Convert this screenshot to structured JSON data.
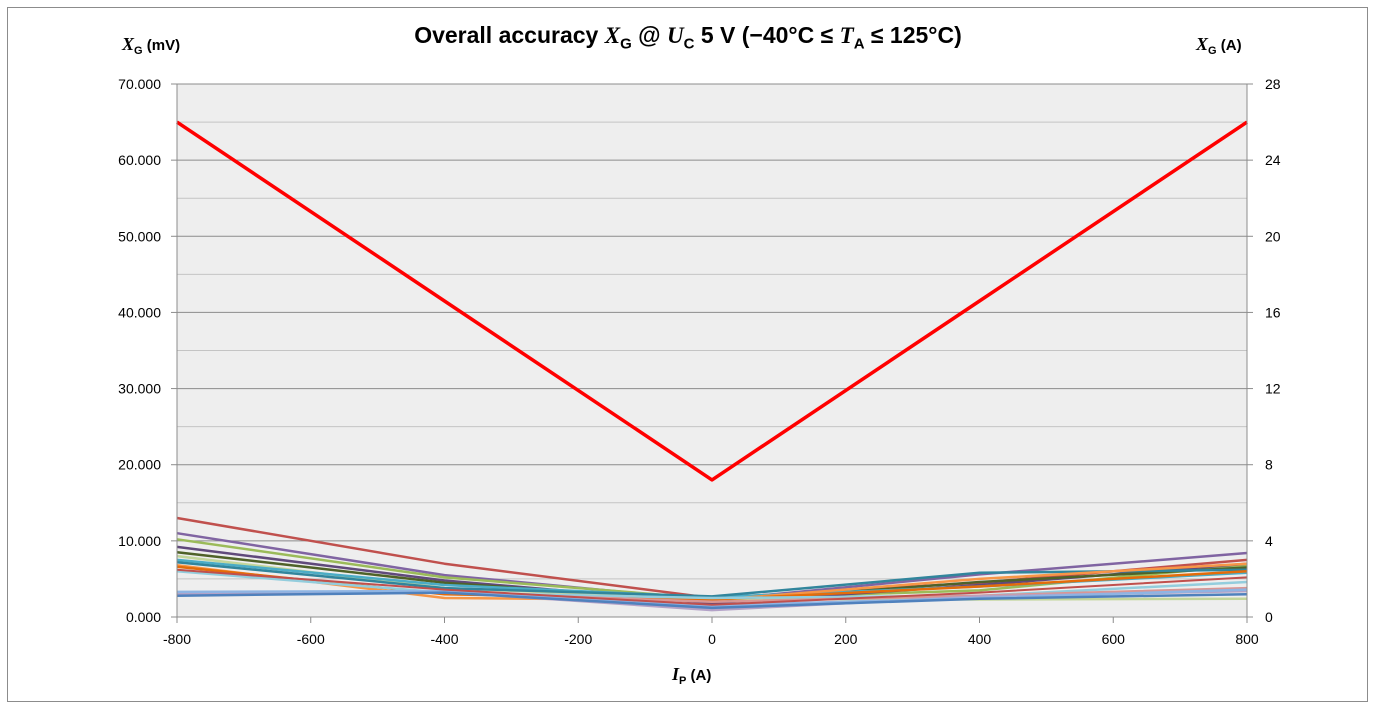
{
  "chart_data": {
    "type": "line",
    "title": {
      "prefix": "Overall accuracy ",
      "symbol1": "X",
      "sub1": "G",
      "mid1": " @ ",
      "symbol2": "U",
      "sub2": "C",
      "mid2": " 5 V (−40°C ≤ ",
      "symbol3": "T",
      "sub3": "A",
      "suffix": " ≤ 125°C)"
    },
    "ylabel_left": {
      "symbol": "X",
      "sub": "G",
      "unit": " (mV)"
    },
    "ylabel_right": {
      "symbol": "X",
      "sub": "G",
      "unit": " (A)"
    },
    "xlabel": {
      "symbol": "I",
      "sub": "P",
      "unit": " (A)"
    },
    "xlim": [
      -800,
      800
    ],
    "ylim_left": [
      0,
      70
    ],
    "ylim_right": [
      0,
      28
    ],
    "x_ticks": [
      "-800",
      "-600",
      "-400",
      "-200",
      "0",
      "200",
      "400",
      "600",
      "800"
    ],
    "y_left_ticks": [
      "0.000",
      "10.000",
      "20.000",
      "30.000",
      "40.000",
      "50.000",
      "60.000",
      "70.000"
    ],
    "y_right_ticks": [
      "0",
      "4",
      "8",
      "12",
      "16",
      "20",
      "24",
      "28"
    ],
    "grid": true,
    "x": [
      -800,
      -400,
      0,
      400,
      800
    ],
    "series": [
      {
        "color": "#FF0000",
        "width": 3.5,
        "values": [
          65,
          41.5,
          18,
          41.5,
          65
        ]
      },
      {
        "color": "#C0504D",
        "width": 2.5,
        "values": [
          13,
          7,
          2.5,
          4.5,
          7.5
        ]
      },
      {
        "color": "#8064A2",
        "width": 2.5,
        "values": [
          11,
          5.5,
          2.2,
          5.6,
          8.4
        ]
      },
      {
        "color": "#9BBB59",
        "width": 2.5,
        "values": [
          10.2,
          5.2,
          2.4,
          3.5,
          6.8
        ]
      },
      {
        "color": "#604A7B",
        "width": 2.5,
        "values": [
          9.2,
          4.8,
          1.8,
          4.2,
          7.0
        ]
      },
      {
        "color": "#4F6228",
        "width": 2.5,
        "values": [
          8.5,
          4.5,
          2.0,
          4.6,
          6.5
        ]
      },
      {
        "color": "#C3D69B",
        "width": 2.5,
        "values": [
          8.0,
          3.8,
          2.4,
          2.3,
          2.4
        ]
      },
      {
        "color": "#4BACC6",
        "width": 2.5,
        "values": [
          7.5,
          4.2,
          2.6,
          4.0,
          5.8
        ]
      },
      {
        "color": "#31859C",
        "width": 2.5,
        "values": [
          7.2,
          3.8,
          2.7,
          5.8,
          6.2
        ]
      },
      {
        "color": "#F79646",
        "width": 2.5,
        "values": [
          6.8,
          2.5,
          2.2,
          5.0,
          7.0
        ]
      },
      {
        "color": "#E46C0A",
        "width": 2.5,
        "values": [
          6.6,
          3.0,
          2.3,
          4.0,
          6.0
        ]
      },
      {
        "color": "#93CDDD",
        "width": 2.5,
        "values": [
          6.0,
          3.2,
          2.5,
          2.8,
          4.6
        ]
      },
      {
        "color": "#D99694",
        "width": 2.5,
        "values": [
          3.0,
          3.2,
          2.0,
          2.8,
          3.8
        ]
      },
      {
        "color": "#B3A2C7",
        "width": 2.5,
        "values": [
          3.1,
          3.3,
          0.9,
          2.7,
          3.4
        ]
      },
      {
        "color": "#8EB4E3",
        "width": 2.5,
        "values": [
          3.3,
          3.4,
          1.5,
          2.5,
          3.6
        ]
      },
      {
        "color": "#C0504D",
        "width": 2.0,
        "values": [
          6.2,
          3.6,
          1.6,
          3.2,
          5.2
        ]
      },
      {
        "color": "#4F81BD",
        "width": 2.5,
        "values": [
          2.8,
          3.2,
          1.2,
          2.4,
          3.0
        ]
      }
    ]
  }
}
